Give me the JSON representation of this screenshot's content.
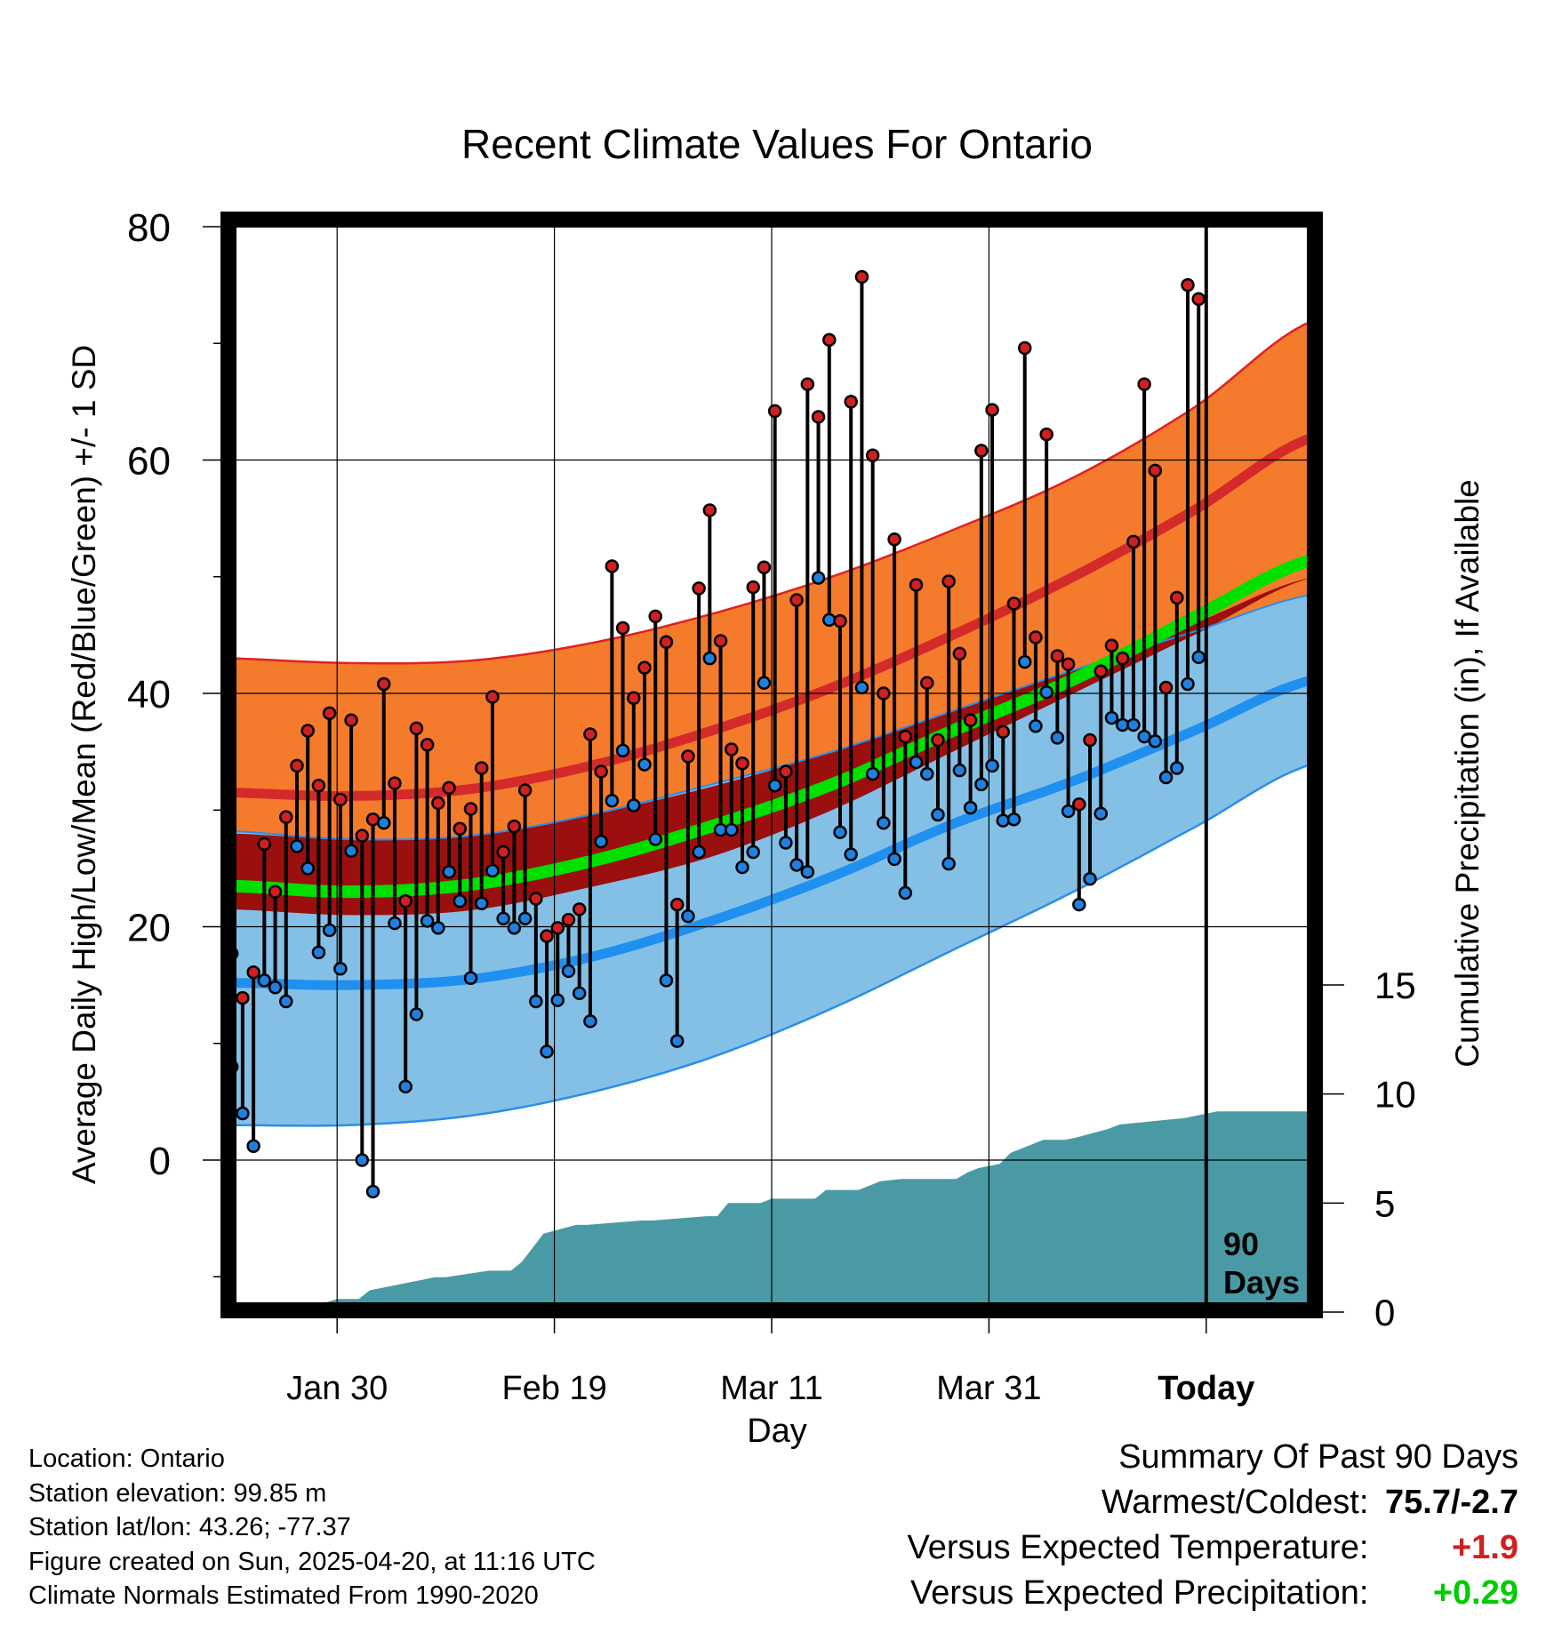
{
  "chart_data": {
    "type": "line",
    "title": "Recent Climate Values For Ontario",
    "xlabel": "Day",
    "ylabel": "Average Daily High/Low/Mean (Red/Blue/Green) +/- 1 SD",
    "y2label": "Cumulative Precipitation (in), If Available",
    "ylim": [
      -12,
      80
    ],
    "yticks": [
      0,
      20,
      40,
      60,
      80
    ],
    "y2lim": [
      0,
      40
    ],
    "y2ticks": [
      0,
      5,
      10,
      15
    ],
    "xticks": [
      {
        "day": 10,
        "label": "Jan 30"
      },
      {
        "day": 30,
        "label": "Feb 19"
      },
      {
        "day": 50,
        "label": "Mar 11"
      },
      {
        "day": 70,
        "label": "Mar 31"
      },
      {
        "day": 90,
        "label": "Today"
      }
    ],
    "xlim": [
      0,
      100
    ],
    "today_marker": {
      "day": 90,
      "label_line1": "90",
      "label_line2": "Days"
    },
    "grid": true,
    "normals": {
      "high_mean": [
        31.5,
        31.2,
        31.8,
        33.8,
        36.8,
        40.5,
        45.0,
        50.0,
        55.7,
        62.0
      ],
      "high_upper": [
        43.0,
        42.6,
        42.8,
        44.3,
        46.8,
        50.0,
        54.0,
        58.5,
        64.5,
        72.0
      ],
      "low_mean": [
        15.2,
        15.0,
        15.5,
        17.4,
        20.5,
        24.3,
        28.8,
        32.5,
        36.8,
        41.2
      ],
      "low_upper": [
        28.2,
        27.5,
        27.8,
        29.6,
        32.2,
        35.0,
        38.5,
        42.0,
        45.3,
        48.5
      ],
      "low_lower": [
        3.0,
        3.0,
        3.8,
        5.8,
        8.8,
        13.0,
        18.0,
        23.0,
        28.5,
        34.0
      ],
      "mean_mean": [
        23.5,
        23.0,
        23.6,
        25.6,
        28.6,
        32.2,
        36.8,
        41.2,
        46.5,
        51.5
      ],
      "mean_upper": [
        28.0,
        27.5,
        27.8,
        29.6,
        32.0,
        35.0,
        38.5,
        42.0,
        46.0,
        50.0
      ],
      "mean_lower": [
        21.5,
        21.0,
        21.4,
        23.4,
        26.0,
        30.0,
        35.0,
        40.0,
        45.0,
        50.0
      ]
    },
    "daily": {
      "high": [
        17.7,
        13.9,
        16.1,
        27.1,
        23.0,
        29.4,
        33.8,
        36.8,
        32.1,
        38.3,
        30.9,
        37.7,
        27.8,
        29.2,
        40.8,
        32.3,
        22.2,
        37.0,
        35.6,
        30.6,
        31.9,
        28.4,
        30.1,
        33.6,
        39.7,
        26.4,
        28.6,
        31.7,
        22.4,
        19.2,
        19.9,
        20.6,
        21.5,
        36.5,
        33.3,
        50.9,
        45.6,
        39.6,
        42.2,
        46.6,
        44.4,
        21.9,
        34.6,
        49.0,
        55.7,
        44.5,
        35.2,
        34.0,
        49.1,
        50.8,
        64.2,
        33.3,
        48.0,
        66.5,
        63.7,
        70.3,
        46.2,
        65.0,
        75.7,
        60.4,
        40.0,
        53.2,
        36.3,
        49.3,
        40.9,
        36.0,
        49.6,
        43.4,
        37.7,
        60.8,
        64.3,
        36.7,
        47.7,
        69.6,
        44.8,
        62.2,
        43.2,
        42.5,
        30.5,
        36.0,
        41.9,
        44.1,
        43.0,
        53.0,
        66.5,
        59.1,
        40.5,
        48.2,
        75.0,
        73.8
      ],
      "low": [
        8.0,
        4.0,
        1.2,
        15.4,
        14.8,
        13.6,
        26.9,
        25.0,
        17.8,
        19.7,
        16.4,
        26.5,
        0.0,
        -2.7,
        28.9,
        20.3,
        6.3,
        12.5,
        20.5,
        19.9,
        24.7,
        22.2,
        15.6,
        22.0,
        24.8,
        20.7,
        19.9,
        20.7,
        13.6,
        9.3,
        13.7,
        16.2,
        14.3,
        11.9,
        27.3,
        30.8,
        35.1,
        30.4,
        33.9,
        27.5,
        15.4,
        10.2,
        20.9,
        26.4,
        43.0,
        28.3,
        28.3,
        25.1,
        26.4,
        40.9,
        32.1,
        27.2,
        25.3,
        24.7,
        49.9,
        46.3,
        28.1,
        26.2,
        40.5,
        33.1,
        28.9,
        25.8,
        22.9,
        34.1,
        33.1,
        29.6,
        25.4,
        33.4,
        30.2,
        32.2,
        33.8,
        29.1,
        29.2,
        42.7,
        37.2,
        40.1,
        36.2,
        29.9,
        21.9,
        24.1,
        29.7,
        37.9,
        37.3,
        37.3,
        36.3,
        35.9,
        32.8,
        33.6,
        40.8,
        43.1
      ]
    },
    "precip_cumulative": {
      "days": [
        0,
        3,
        4,
        8,
        10,
        12,
        13,
        17,
        19,
        20,
        24,
        26,
        27,
        29,
        32,
        33,
        38,
        39,
        44,
        45,
        46,
        49,
        50,
        54,
        55,
        58,
        60,
        62,
        67,
        68,
        69,
        71,
        72,
        73,
        75,
        77,
        78,
        81,
        82,
        84,
        86,
        88,
        89,
        91,
        93,
        100
      ],
      "values": [
        0,
        0,
        0.3,
        0.3,
        0.6,
        0.6,
        1.0,
        1.4,
        1.6,
        1.6,
        1.9,
        1.9,
        2.3,
        3.6,
        4.0,
        4.0,
        4.2,
        4.2,
        4.4,
        4.4,
        5.0,
        5.0,
        5.2,
        5.2,
        5.6,
        5.6,
        6.0,
        6.1,
        6.1,
        6.4,
        6.6,
        6.8,
        7.3,
        7.5,
        7.9,
        7.9,
        8.0,
        8.4,
        8.6,
        8.7,
        8.8,
        8.9,
        9.0,
        9.2,
        9.2,
        9.2
      ]
    }
  },
  "info": {
    "location": "Location: Ontario",
    "elevation": "Station elevation: 99.85 m",
    "latlon": "Station lat/lon: 43.26; -77.37",
    "created": "Figure created on Sun, 2025-04-20, at 11:16 UTC",
    "normals": "Climate Normals Estimated From 1990-2020"
  },
  "summary": {
    "title": "Summary Of Past 90 Days",
    "warmest_label": "Warmest/Coldest:",
    "warmest_value": "75.7/-2.7",
    "temp_label": "Versus Expected Temperature:",
    "temp_value": "+1.9",
    "precip_label": "Versus Expected Precipitation:",
    "precip_value": "+0.29"
  },
  "colors": {
    "high_band": "#f47b2c",
    "high_edge": "#e02020",
    "high_mean": "#d42a2a",
    "mean_band": "#9b0f0f",
    "mean_line": "#00e000",
    "low_band": "#84c0e6",
    "low_edge": "#2a8ee8",
    "low_mean": "#2090f0",
    "precip": "#4a9aa5",
    "high_dot": "#d02020",
    "low_dot": "#2080e0",
    "temp_delta": "#d02020",
    "precip_delta": "#00cc00"
  }
}
